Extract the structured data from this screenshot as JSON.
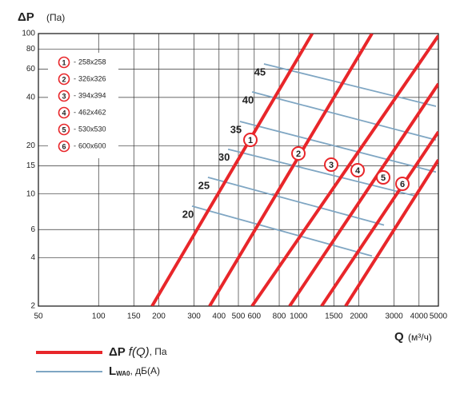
{
  "chart_data": {
    "type": "line",
    "x_label": {
      "symbol": "Q",
      "unit": "(м³/ч)"
    },
    "y_label": {
      "symbol": "ΔP",
      "unit": "(Па)"
    },
    "log_x": true,
    "log_y": true,
    "grid": true,
    "xlim": [
      50,
      5000
    ],
    "ylim": [
      2,
      100
    ],
    "xticks": [
      50,
      100,
      150,
      200,
      300,
      400,
      500,
      600,
      800,
      1000,
      1500,
      2000,
      3000,
      4000,
      5000
    ],
    "yticks": [
      2,
      4,
      6,
      10,
      15,
      20,
      40,
      60,
      80,
      100
    ],
    "series": [
      {
        "name": "258x258",
        "label": "1",
        "color": "#e8262a",
        "x": [
          185,
          1170
        ],
        "values": [
          2,
          100
        ]
      },
      {
        "name": "326x326",
        "label": "2",
        "color": "#e8262a",
        "x": [
          359,
          2328
        ],
        "values": [
          2,
          100
        ]
      },
      {
        "name": "394x394",
        "label": "3",
        "color": "#e8262a",
        "x": [
          585,
          5000
        ],
        "values": [
          2,
          97
        ]
      },
      {
        "name": "462x462",
        "label": "4",
        "color": "#e8262a",
        "x": [
          902,
          5000
        ],
        "values": [
          2,
          48.6
        ]
      },
      {
        "name": "530x530",
        "label": "5",
        "color": "#e8262a",
        "x": [
          1303,
          5000
        ],
        "values": [
          2,
          24.4
        ]
      },
      {
        "name": "600x600",
        "label": "6",
        "color": "#e8262a",
        "x": [
          1718,
          5000
        ],
        "values": [
          2,
          16.3
        ]
      }
    ],
    "noise_series": [
      {
        "name": "20",
        "color": "#7fa6c3",
        "x": [
          293,
          2328
        ],
        "values": [
          8.4,
          4.1
        ]
      },
      {
        "name": "25",
        "color": "#7fa6c3",
        "x": [
          352,
          2673
        ],
        "values": [
          12.7,
          6.4
        ]
      },
      {
        "name": "30",
        "color": "#7fa6c3",
        "x": [
          444,
          3864
        ],
        "values": [
          19.0,
          9.7
        ]
      },
      {
        "name": "35",
        "color": "#7fa6c3",
        "x": [
          509,
          4864
        ],
        "values": [
          28.3,
          13.7
        ]
      },
      {
        "name": "40",
        "color": "#7fa6c3",
        "x": [
          585,
          4864
        ],
        "values": [
          43.3,
          21.7
        ]
      },
      {
        "name": "45",
        "color": "#7fa6c3",
        "x": [
          671,
          4864
        ],
        "values": [
          64.7,
          35.2
        ]
      }
    ],
    "legend": [
      {
        "symbol": "ΔP",
        "func": "f(Q)",
        "unit": ", Па",
        "color": "#e8262a"
      },
      {
        "symbol": "L",
        "sub": "WA0",
        "unit": ", дБ(А)",
        "color": "#7fa6c3"
      }
    ]
  }
}
